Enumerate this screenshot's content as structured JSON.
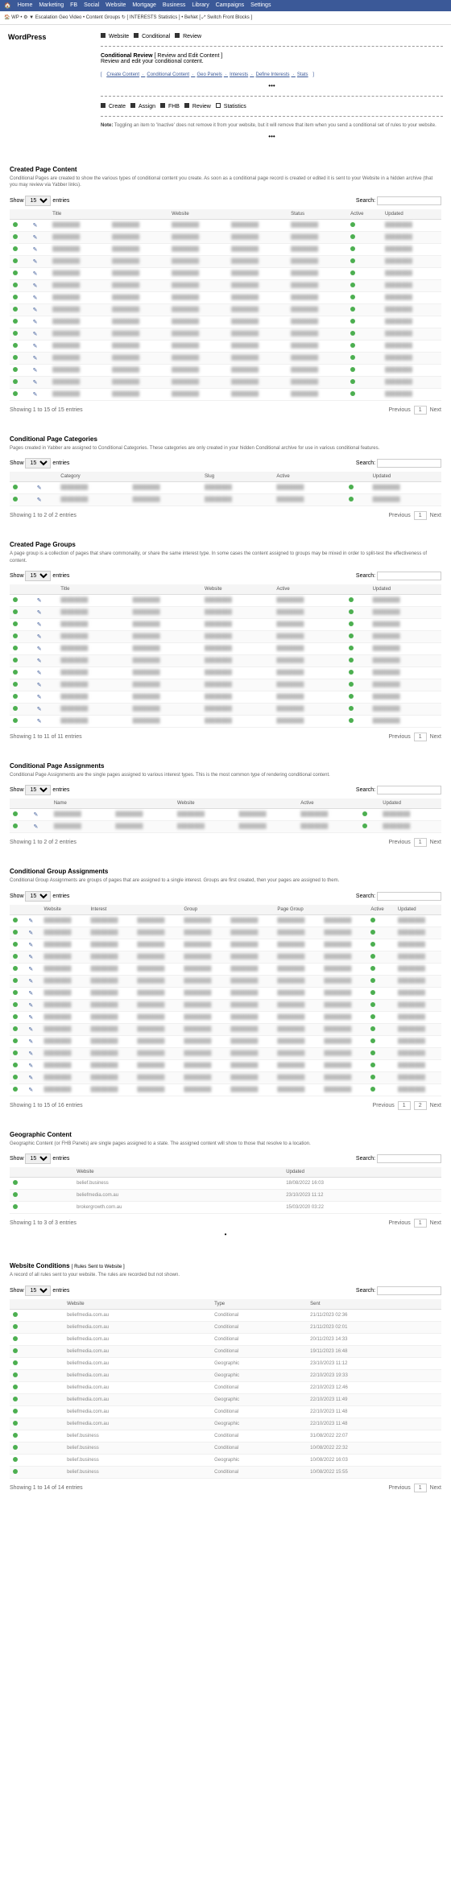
{
  "topnav": [
    "Home",
    "Marketing",
    "FB",
    "Social",
    "Website",
    "Mortgage",
    "Business",
    "Library",
    "Campaigns",
    "Settings"
  ],
  "subnav": "🏠 WP • ⚙ ▼ Escalation Geo Video • Content Groups ↻ [ INTERESTS Statistics ] • BeNet [ ⤢ Switch Front Blocks ]",
  "leftTitle": "WordPress",
  "tabs": {
    "website": "Website",
    "conditional": "Conditional",
    "review": "Review"
  },
  "reviewTitle": "Conditional Review",
  "reviewSub": "[ Review and Edit Content ]",
  "reviewDesc": "Review and edit your conditional content.",
  "links": [
    "Create Content",
    "Conditional Content",
    "Geo Panels",
    "Interests",
    "Define Interests",
    "Stats"
  ],
  "actionBar": {
    "create": "Create",
    "assign": "Assign",
    "fhb": "FHB",
    "review": "Review",
    "stats": "Statistics"
  },
  "note": "Toggling an item to 'Inactive' does not remove it from your website, but it will remove that item when you send a conditional set of rules to your website.",
  "showLabel": "Show",
  "entriesLabel": "entries",
  "searchLabel": "Search:",
  "prev": "Previous",
  "next": "Next",
  "sections": {
    "s1": {
      "title": "Created Page Content",
      "desc": "Conditional Pages are created to show the various types of conditional content you create. As soon as a conditional page record is created or edited it is sent to your Website in a hidden archive (that you may review via Yabber links).",
      "cols": [
        "",
        "",
        "Title",
        "",
        "Website",
        "",
        "Status",
        "Active",
        "Updated"
      ],
      "rows": 15,
      "summary": "Showing 1 to 15 of 15 entries"
    },
    "s2": {
      "title": "Conditional Page Categories",
      "desc": "Pages created in Yabber are assigned to Conditional Categories. These categories are only created in your hidden Conditional archive for use in various conditional features.",
      "cols": [
        "",
        "",
        "Category",
        "",
        "Slug",
        "Active",
        "",
        "Updated"
      ],
      "rows": 2,
      "summary": "Showing 1 to 2 of 2 entries"
    },
    "s3": {
      "title": "Created Page Groups",
      "desc": "A page group is a collection of pages that share commonality, or share the same interest type. In some cases the content assigned to groups may be mixed in order to split-test the effectiveness of content.",
      "cols": [
        "",
        "",
        "Title",
        "",
        "Website",
        "Active",
        "",
        "Updated"
      ],
      "rows": 11,
      "summary": "Showing 1 to 11 of 11 entries"
    },
    "s4": {
      "title": "Conditional Page Assignments",
      "desc": "Conditional Page Assignments are the single pages assigned to various interest types. This is the most common type of rendering conditional content.",
      "cols": [
        "",
        "",
        "Name",
        "",
        "Website",
        "",
        "Active",
        "",
        "Updated"
      ],
      "rows": 2,
      "summary": "Showing 1 to 2 of 2 entries"
    },
    "s5": {
      "title": "Conditional Group Assignments",
      "desc": "Conditional Group Assignments are groups of pages that are assigned to a single interest. Groups are first created, then your pages are assigned to them.",
      "cols": [
        "",
        "",
        "Website",
        "Interest",
        "",
        "Group",
        "",
        "Page Group",
        "",
        "Active",
        "Updated"
      ],
      "rows": 15,
      "summary": "Showing 1 to 15 of 16 entries",
      "pages": 2
    },
    "s6": {
      "title": "Geographic Content",
      "desc": "Geographic Content (or FHB Panels) are single pages assigned to a state. The assigned content will show to those that resolve to a location.",
      "cols": [
        "",
        "",
        "Website",
        "",
        "Updated"
      ],
      "data": [
        [
          "belief.business",
          "18/08/2022 16:03"
        ],
        [
          "beliefmedia.com.au",
          "23/10/2023 11:12"
        ],
        [
          "brokergrowth.com.au",
          "15/03/2020 03:22"
        ]
      ],
      "summary": "Showing 1 to 3 of 3 entries"
    },
    "s7": {
      "title": "Website Conditions",
      "titleSub": "[ Rules Sent to Website ]",
      "desc": "A record of all rules sent to your website. The rules are recorded but not shown.",
      "cols": [
        "",
        "",
        "Website",
        "Type",
        "Sent"
      ],
      "data": [
        [
          "beliefmedia.com.au",
          "Conditional",
          "21/11/2023 02:36"
        ],
        [
          "beliefmedia.com.au",
          "Conditional",
          "21/11/2023 02:01"
        ],
        [
          "beliefmedia.com.au",
          "Conditional",
          "20/11/2023 14:33"
        ],
        [
          "beliefmedia.com.au",
          "Conditional",
          "19/11/2023 16:48"
        ],
        [
          "beliefmedia.com.au",
          "Geographic",
          "23/10/2023 11:12"
        ],
        [
          "beliefmedia.com.au",
          "Geographic",
          "22/10/2023 19:33"
        ],
        [
          "beliefmedia.com.au",
          "Conditional",
          "22/10/2023 12:46"
        ],
        [
          "beliefmedia.com.au",
          "Geographic",
          "22/10/2023 11:49"
        ],
        [
          "beliefmedia.com.au",
          "Conditional",
          "22/10/2023 11:48"
        ],
        [
          "beliefmedia.com.au",
          "Geographic",
          "22/10/2023 11:48"
        ],
        [
          "belief.business",
          "Conditional",
          "31/08/2022 22:07"
        ],
        [
          "belief.business",
          "Conditional",
          "10/08/2022 22:32"
        ],
        [
          "belief.business",
          "Geographic",
          "10/08/2022 16:03"
        ],
        [
          "belief.business",
          "Conditional",
          "10/08/2022 15:55"
        ]
      ],
      "summary": "Showing 1 to 14 of 14 entries"
    }
  }
}
